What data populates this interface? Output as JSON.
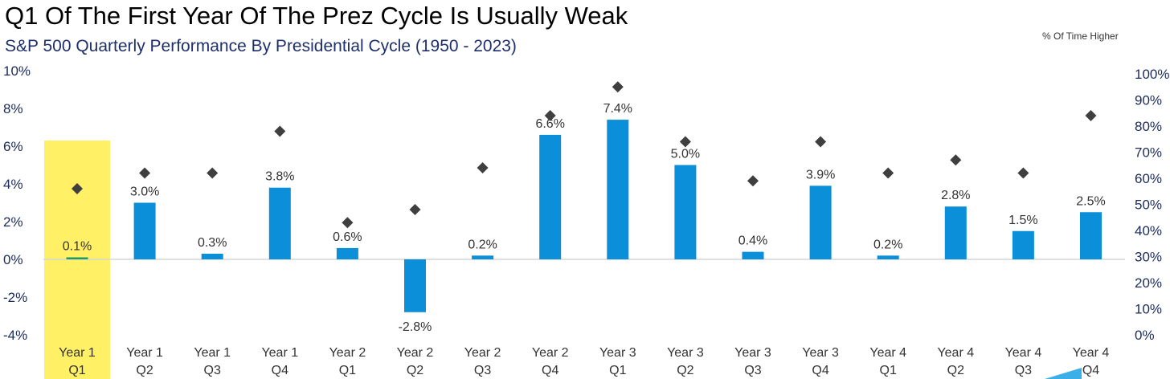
{
  "title": "Q1 Of The First Year Of The Prez Cycle Is Usually Weak",
  "subtitle": "S&P 500 Quarterly Performance By Presidential Cycle (1950 - 2023)",
  "right_axis_title": "% Of Time Higher",
  "colors": {
    "bar": "#0a8fd8",
    "bar_highlight": "#1f9a5a",
    "highlight_band": "#fff066",
    "marker": "#3f3f3f",
    "axis_text": "#1b2a5a",
    "zero_line": "#d5d5d5",
    "corner_accent": "#3bb0e8"
  },
  "chart_data": {
    "type": "bar",
    "categories": [
      [
        "Year 1",
        "Q1"
      ],
      [
        "Year 1",
        "Q2"
      ],
      [
        "Year 1",
        "Q3"
      ],
      [
        "Year 1",
        "Q4"
      ],
      [
        "Year 2",
        "Q1"
      ],
      [
        "Year 2",
        "Q2"
      ],
      [
        "Year 2",
        "Q3"
      ],
      [
        "Year 2",
        "Q4"
      ],
      [
        "Year 3",
        "Q1"
      ],
      [
        "Year 3",
        "Q2"
      ],
      [
        "Year 3",
        "Q3"
      ],
      [
        "Year 3",
        "Q4"
      ],
      [
        "Year 4",
        "Q1"
      ],
      [
        "Year 4",
        "Q2"
      ],
      [
        "Year 4",
        "Q3"
      ],
      [
        "Year 4",
        "Q4"
      ]
    ],
    "series": [
      {
        "type": "bar",
        "axis": "left",
        "values": [
          0.1,
          3.0,
          0.3,
          3.8,
          0.6,
          -2.8,
          0.2,
          6.6,
          7.4,
          5.0,
          0.4,
          3.9,
          0.2,
          2.8,
          1.5,
          2.5
        ],
        "labels": [
          "0.1%",
          "3.0%",
          "0.3%",
          "3.8%",
          "0.6%",
          "-2.8%",
          "0.2%",
          "6.6%",
          "7.4%",
          "5.0%",
          "0.4%",
          "3.9%",
          "0.2%",
          "2.8%",
          "1.5%",
          "2.5%"
        ]
      },
      {
        "name": "% Of Time Higher",
        "type": "scatter",
        "marker": "diamond",
        "axis": "right",
        "values": [
          56,
          62,
          62,
          78,
          43,
          48,
          64,
          84,
          95,
          74,
          59,
          74,
          62,
          67,
          62,
          84
        ]
      }
    ],
    "left_axis": {
      "ylim": [
        -4,
        10
      ],
      "ticks": [
        10,
        8,
        6,
        4,
        2,
        0,
        -2,
        -4
      ],
      "tick_labels": [
        "10%",
        "8%",
        "6%",
        "4%",
        "2%",
        "0%",
        "-2%",
        "-4%"
      ]
    },
    "right_axis": {
      "ylim": [
        0,
        100
      ],
      "ticks": [
        100,
        90,
        80,
        70,
        60,
        50,
        40,
        30,
        20,
        10,
        0
      ],
      "tick_labels": [
        "100%",
        "90%",
        "80%",
        "70%",
        "60%",
        "50%",
        "40%",
        "30%",
        "20%",
        "10%",
        "0%"
      ]
    },
    "highlight_category_index": 0,
    "grid": false,
    "legend": "none"
  }
}
